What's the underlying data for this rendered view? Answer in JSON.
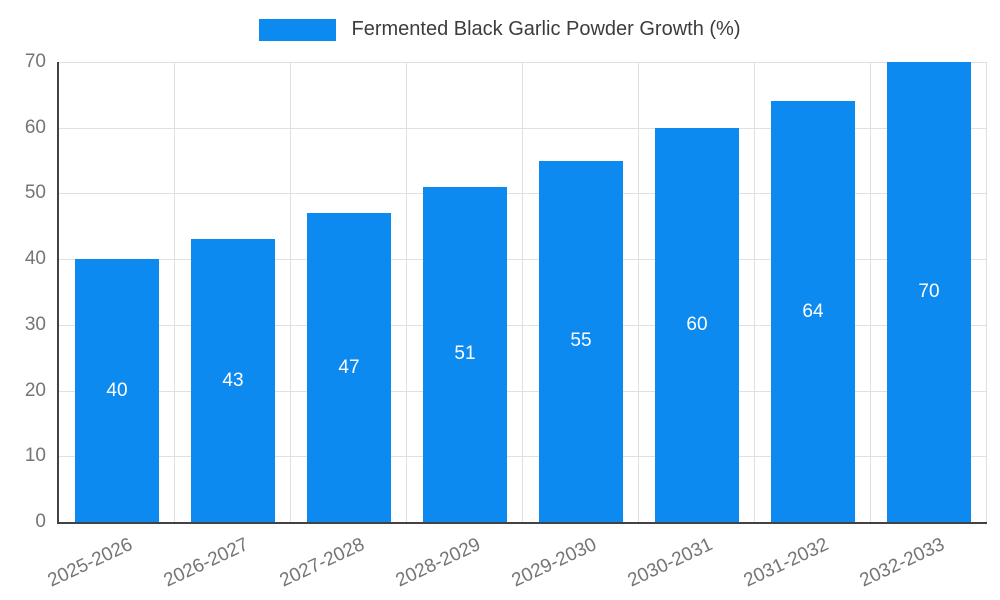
{
  "chart_data": {
    "type": "bar",
    "title": "Fermented Black Garlic Powder Growth (%)",
    "categories": [
      "2025-2026",
      "2026-2027",
      "2027-2028",
      "2028-2029",
      "2029-2030",
      "2030-2031",
      "2031-2032",
      "2032-2033"
    ],
    "values": [
      40,
      43,
      47,
      51,
      55,
      60,
      64,
      70
    ],
    "xlabel": "",
    "ylabel": "",
    "ylim": [
      0,
      70
    ],
    "yticks": [
      0,
      10,
      20,
      30,
      40,
      50,
      60,
      70
    ],
    "grid": true,
    "legend_position": "top",
    "bar_color": "#0d8af0",
    "value_label_color": "#ffffff",
    "tick_label_color": "#757575",
    "grid_color": "#e0e0e0",
    "axis_color": "#424242"
  }
}
